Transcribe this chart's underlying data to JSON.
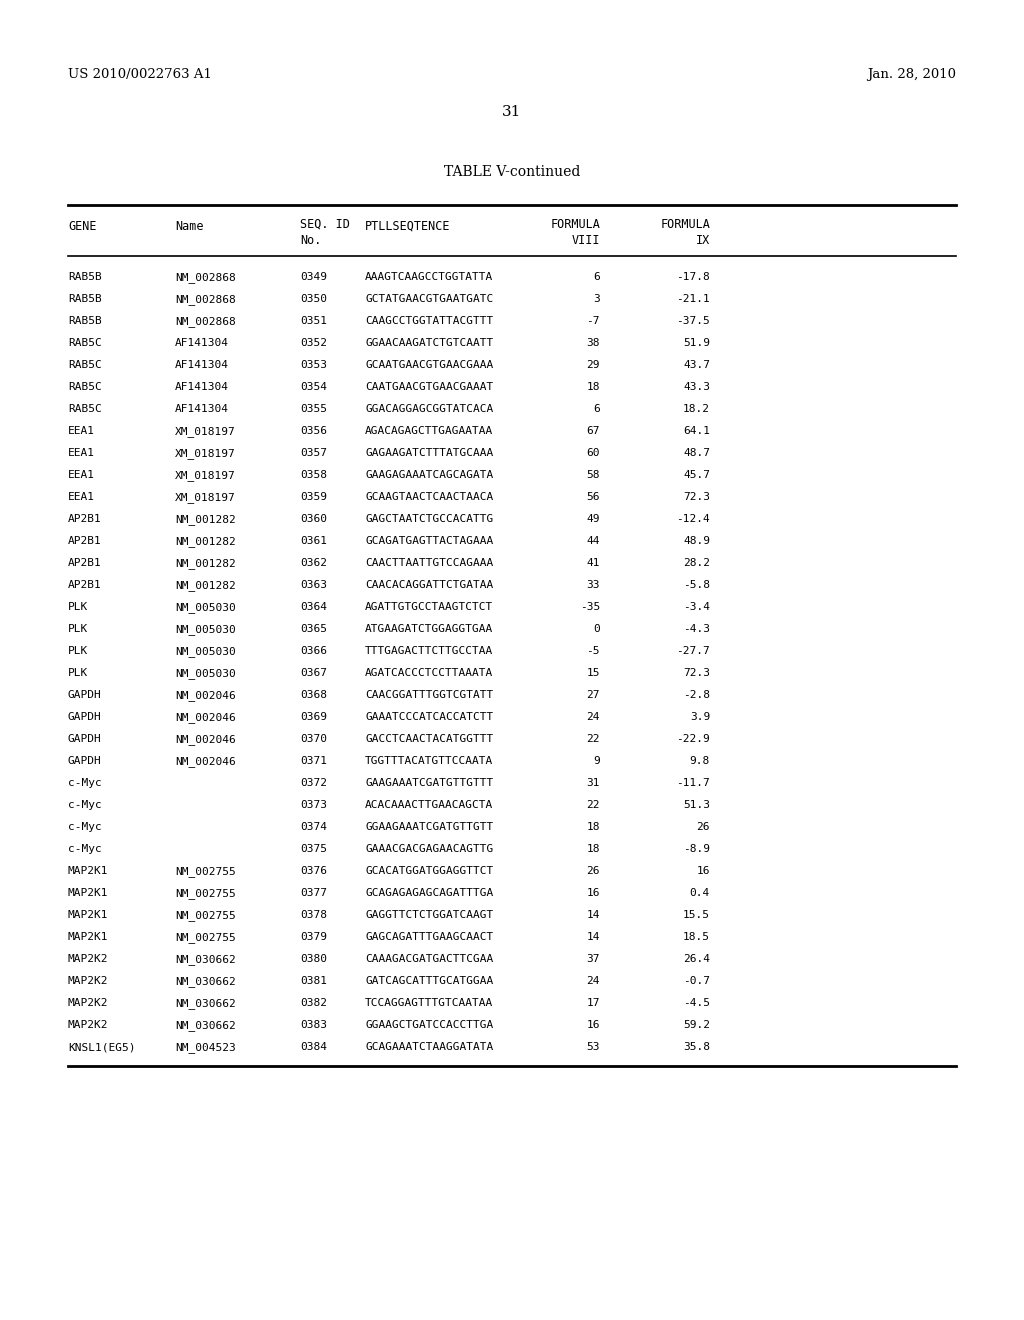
{
  "header_left": "US 2010/0022763 A1",
  "header_right": "Jan. 28, 2010",
  "page_number": "31",
  "table_title": "TABLE V-continued",
  "rows": [
    [
      "RAB5B",
      "NM_002868",
      "0349",
      "AAAGTCAAGCCTGGTATTA",
      "6",
      "-17.8"
    ],
    [
      "RAB5B",
      "NM_002868",
      "0350",
      "GCTATGAACGTGAATGATC",
      "3",
      "-21.1"
    ],
    [
      "RAB5B",
      "NM_002868",
      "0351",
      "CAAGCCTGGTATTACGTTT",
      "-7",
      "-37.5"
    ],
    [
      "RAB5C",
      "AF141304",
      "0352",
      "GGAACAAGATCTGTCAATT",
      "38",
      "51.9"
    ],
    [
      "RAB5C",
      "AF141304",
      "0353",
      "GCAATGAACGTGAACGAAA",
      "29",
      "43.7"
    ],
    [
      "RAB5C",
      "AF141304",
      "0354",
      "CAATGAACGTGAACGAAAT",
      "18",
      "43.3"
    ],
    [
      "RAB5C",
      "AF141304",
      "0355",
      "GGACAGGAGCGGTATCACA",
      "6",
      "18.2"
    ],
    [
      "EEA1",
      "XM_018197",
      "0356",
      "AGACAGAGCTTGAGAATAA",
      "67",
      "64.1"
    ],
    [
      "EEA1",
      "XM_018197",
      "0357",
      "GAGAAGATCTTTATGCAAA",
      "60",
      "48.7"
    ],
    [
      "EEA1",
      "XM_018197",
      "0358",
      "GAAGAGAAATCAGCAGATA",
      "58",
      "45.7"
    ],
    [
      "EEA1",
      "XM_018197",
      "0359",
      "GCAAGTAACTCAACTAACA",
      "56",
      "72.3"
    ],
    [
      "AP2B1",
      "NM_001282",
      "0360",
      "GAGCTAATCTGCCACATTG",
      "49",
      "-12.4"
    ],
    [
      "AP2B1",
      "NM_001282",
      "0361",
      "GCAGATGAGTTACTAGAAA",
      "44",
      "48.9"
    ],
    [
      "AP2B1",
      "NM_001282",
      "0362",
      "CAACTTAATTGTCCAGAAA",
      "41",
      "28.2"
    ],
    [
      "AP2B1",
      "NM_001282",
      "0363",
      "CAACACAGGATTCTGATAA",
      "33",
      "-5.8"
    ],
    [
      "PLK",
      "NM_005030",
      "0364",
      "AGATTGTGCCTAAGTCTCT",
      "-35",
      "-3.4"
    ],
    [
      "PLK",
      "NM_005030",
      "0365",
      "ATGAAGATCTGGAGGTGAA",
      "0",
      "-4.3"
    ],
    [
      "PLK",
      "NM_005030",
      "0366",
      "TTTGAGACTTCTTGCCTAA",
      "-5",
      "-27.7"
    ],
    [
      "PLK",
      "NM_005030",
      "0367",
      "AGATCACCCTCCTTAAATA",
      "15",
      "72.3"
    ],
    [
      "GAPDH",
      "NM_002046",
      "0368",
      "CAACGGATTTGGTCGTATT",
      "27",
      "-2.8"
    ],
    [
      "GAPDH",
      "NM_002046",
      "0369",
      "GAAATCCCATCACCATCTT",
      "24",
      "3.9"
    ],
    [
      "GAPDH",
      "NM_002046",
      "0370",
      "GACCTCAACTACATGGTTT",
      "22",
      "-22.9"
    ],
    [
      "GAPDH",
      "NM_002046",
      "0371",
      "TGGTTTACATGTTCCAATA",
      "9",
      "9.8"
    ],
    [
      "c-Myc",
      "",
      "0372",
      "GAAGAAATCGATGTTGTTT",
      "31",
      "-11.7"
    ],
    [
      "c-Myc",
      "",
      "0373",
      "ACACAAACTTGAACAGCTA",
      "22",
      "51.3"
    ],
    [
      "c-Myc",
      "",
      "0374",
      "GGAAGAAATCGATGTTGTT",
      "18",
      "26"
    ],
    [
      "c-Myc",
      "",
      "0375",
      "GAAACGACGAGAACAGTTG",
      "18",
      "-8.9"
    ],
    [
      "MAP2K1",
      "NM_002755",
      "0376",
      "GCACATGGATGGAGGTTCT",
      "26",
      "16"
    ],
    [
      "MAP2K1",
      "NM_002755",
      "0377",
      "GCAGAGAGAGCAGATTTGA",
      "16",
      "0.4"
    ],
    [
      "MAP2K1",
      "NM_002755",
      "0378",
      "GAGGTTCTCTGGATCAAGT",
      "14",
      "15.5"
    ],
    [
      "MAP2K1",
      "NM_002755",
      "0379",
      "GAGCAGATTTGAAGCAACT",
      "14",
      "18.5"
    ],
    [
      "MAP2K2",
      "NM_030662",
      "0380",
      "CAAAGACGATGACTTCGAA",
      "37",
      "26.4"
    ],
    [
      "MAP2K2",
      "NM_030662",
      "0381",
      "GATCAGCATTTGCATGGAA",
      "24",
      "-0.7"
    ],
    [
      "MAP2K2",
      "NM_030662",
      "0382",
      "TCCAGGAGTTTGTCAATAA",
      "17",
      "-4.5"
    ],
    [
      "MAP2K2",
      "NM_030662",
      "0383",
      "GGAAGCTGATCCACCTTGA",
      "16",
      "59.2"
    ],
    [
      "KNSL1(EG5)",
      "NM_004523",
      "0384",
      "GCAGAAATCTAAGGATATA",
      "53",
      "35.8"
    ]
  ],
  "bg_color": "#ffffff",
  "text_color": "#000000"
}
